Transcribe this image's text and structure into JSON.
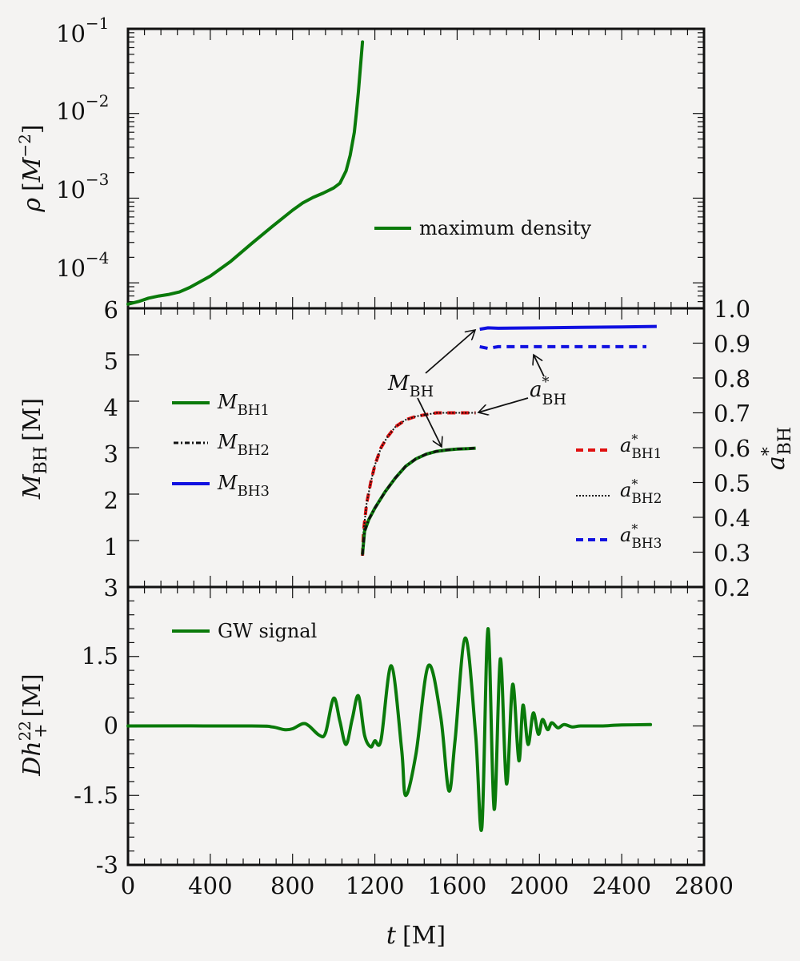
{
  "chart_data": {
    "type": "line",
    "x_axis": {
      "label": "t [M]",
      "label_var": "t",
      "label_unit": "[M]",
      "range": [
        0,
        2800
      ],
      "ticks": [
        0,
        400,
        800,
        1200,
        1600,
        2000,
        2400,
        2800
      ],
      "tick_labels": [
        "0",
        "400",
        "800",
        "1200",
        "1600",
        "2000",
        "2400",
        "2800"
      ]
    },
    "panels": [
      {
        "id": "density",
        "ylabel": "ρ [M^-2]",
        "ylabel_parts": {
          "var": "ρ",
          "unit_open": "[",
          "unit_var": "M",
          "unit_sup": "−2",
          "unit_close": "]"
        },
        "yscale": "log",
        "ylim": [
          5e-05,
          0.1
        ],
        "yticks": [
          0.0001,
          0.001,
          0.01,
          0.1
        ],
        "ytick_labels": [
          {
            "base": "10",
            "exp": "−4"
          },
          {
            "base": "10",
            "exp": "−3"
          },
          {
            "base": "10",
            "exp": "−2"
          },
          {
            "base": "10",
            "exp": "−1"
          }
        ],
        "legend": {
          "placement": "center-right",
          "entries": [
            {
              "label": "maximum density",
              "color": "#0a7a0a",
              "style": "solid"
            }
          ]
        },
        "series": [
          {
            "name": "maximum density",
            "color": "#0a7a0a",
            "style": "solid",
            "x": [
              0,
              50,
              100,
              150,
              200,
              250,
              300,
              400,
              500,
              600,
              700,
              800,
              850,
              900,
              950,
              1000,
              1030,
              1060,
              1080,
              1100,
              1110,
              1120,
              1130,
              1140
            ],
            "y": [
              5.6e-05,
              6e-05,
              6.6e-05,
              7e-05,
              7.3e-05,
              7.8e-05,
              8.8e-05,
              0.00012,
              0.00018,
              0.00029,
              0.00046,
              0.00072,
              0.00088,
              0.00102,
              0.00115,
              0.00132,
              0.0015,
              0.0021,
              0.0032,
              0.006,
              0.01,
              0.018,
              0.036,
              0.07
            ]
          }
        ]
      },
      {
        "id": "black-holes",
        "ylabel": "M_BH [M]",
        "ylabel_parts": {
          "var": "M",
          "sub": "BH",
          "unit": "[M]"
        },
        "ylim": [
          0,
          6
        ],
        "yticks": [
          1,
          2,
          3,
          4,
          5,
          6
        ],
        "ytick_labels": [
          "1",
          "2",
          "3",
          "4",
          "5",
          "6"
        ],
        "ylabel_right": "a*_BH",
        "ylabel_right_parts": {
          "var": "a",
          "sup": "*",
          "sub": "BH"
        },
        "ylim_right": [
          0.2,
          1.0
        ],
        "yticks_right": [
          0.2,
          0.3,
          0.4,
          0.5,
          0.6,
          0.7,
          0.8,
          0.9,
          1.0
        ],
        "ytick_labels_right": [
          "0.2",
          "0.3",
          "0.4",
          "0.5",
          "0.6",
          "0.7",
          "0.8",
          "0.9",
          "1.0"
        ],
        "legend_left": {
          "placement": "center-left",
          "entries": [
            {
              "var": "M",
              "sub": "BH1",
              "color": "#0a7a0a",
              "style": "solid"
            },
            {
              "var": "M",
              "sub": "BH2",
              "color": "#111111",
              "style": "dashdot"
            },
            {
              "var": "M",
              "sub": "BH3",
              "color": "#1010e0",
              "style": "solid"
            }
          ]
        },
        "legend_right": {
          "placement": "center-right",
          "entries": [
            {
              "var": "a",
              "sup": "*",
              "sub": "BH1",
              "color": "#e01010",
              "style": "dashed"
            },
            {
              "var": "a",
              "sup": "*",
              "sub": "BH2",
              "color": "#111111",
              "style": "dotted"
            },
            {
              "var": "a",
              "sup": "*",
              "sub": "BH3",
              "color": "#1010e0",
              "style": "dashed"
            }
          ]
        },
        "annotations": [
          {
            "text_var": "M",
            "text_sub": "BH",
            "points_to": [
              "M_BH3",
              "M_BH1"
            ]
          },
          {
            "text_var": "a",
            "text_sup": "*",
            "text_sub": "BH",
            "points_to": [
              "a*_BH3",
              "a*_BH1"
            ]
          }
        ],
        "series": [
          {
            "name": "M_BH1",
            "axis": "left",
            "color": "#0a7a0a",
            "style": "solid",
            "x": [
              1140,
              1150,
              1170,
              1200,
              1250,
              1300,
              1350,
              1400,
              1450,
              1500,
              1550,
              1600,
              1650,
              1690
            ],
            "y": [
              0.7,
              1.2,
              1.45,
              1.7,
              2.05,
              2.35,
              2.6,
              2.76,
              2.86,
              2.92,
              2.95,
              2.97,
              2.98,
              2.99
            ]
          },
          {
            "name": "M_BH2",
            "axis": "left",
            "color": "#111111",
            "style": "dashdot",
            "x": [
              1140,
              1150,
              1170,
              1200,
              1250,
              1300,
              1350,
              1400,
              1450,
              1500,
              1550,
              1600,
              1650,
              1690
            ],
            "y": [
              0.7,
              1.2,
              1.45,
              1.7,
              2.05,
              2.35,
              2.6,
              2.76,
              2.86,
              2.92,
              2.95,
              2.97,
              2.98,
              2.99
            ]
          },
          {
            "name": "M_BH3",
            "axis": "left",
            "color": "#1010e0",
            "style": "solid",
            "x": [
              1710,
              1750,
              1800,
              2000,
              2200,
              2400,
              2570
            ],
            "y": [
              5.55,
              5.58,
              5.57,
              5.58,
              5.59,
              5.6,
              5.61
            ]
          },
          {
            "name": "a*_BH1",
            "axis": "right",
            "color": "#e01010",
            "style": "dashed",
            "x": [
              1140,
              1145,
              1160,
              1180,
              1200,
              1230,
              1260,
              1300,
              1350,
              1400,
              1450,
              1500,
              1550,
              1600,
              1690
            ],
            "y": [
              0.29,
              0.36,
              0.44,
              0.5,
              0.55,
              0.6,
              0.63,
              0.66,
              0.68,
              0.69,
              0.695,
              0.7,
              0.7,
              0.7,
              0.7
            ]
          },
          {
            "name": "a*_BH2",
            "axis": "right",
            "color": "#111111",
            "style": "dotted",
            "x": [
              1140,
              1145,
              1160,
              1180,
              1200,
              1230,
              1260,
              1300,
              1350,
              1400,
              1450,
              1500,
              1550,
              1600,
              1690
            ],
            "y": [
              0.29,
              0.36,
              0.44,
              0.5,
              0.55,
              0.6,
              0.63,
              0.66,
              0.68,
              0.69,
              0.695,
              0.7,
              0.7,
              0.7,
              0.7
            ]
          },
          {
            "name": "a*_BH3",
            "axis": "right",
            "color": "#1010e0",
            "style": "dashed",
            "x": [
              1710,
              1750,
              1800,
              2000,
              2200,
              2400,
              2520
            ],
            "y": [
              0.89,
              0.885,
              0.89,
              0.89,
              0.89,
              0.89,
              0.89
            ]
          }
        ]
      },
      {
        "id": "gw",
        "ylabel": "Dh+^22 [M]",
        "ylabel_parts": {
          "var": "Dh",
          "sup": "22",
          "sub": "+",
          "unit": "[M]"
        },
        "ylim": [
          -3,
          3
        ],
        "yticks": [
          -3,
          -1.5,
          0,
          1.5,
          3
        ],
        "ytick_labels": [
          "-3",
          "-1.5",
          "0",
          "1.5",
          "3"
        ],
        "legend": {
          "placement": "top-left",
          "entries": [
            {
              "label": "GW signal",
              "color": "#0a7a0a",
              "style": "solid"
            }
          ]
        },
        "series": [
          {
            "name": "GW signal",
            "color": "#0a7a0a",
            "style": "solid",
            "x": [
              0,
              600,
              700,
              760,
              800,
              850,
              880,
              930,
              960,
              1000,
              1030,
              1060,
              1090,
              1120,
              1150,
              1180,
              1200,
              1230,
              1280,
              1330,
              1350,
              1400,
              1460,
              1520,
              1560,
              1590,
              1640,
              1690,
              1720,
              1750,
              1780,
              1810,
              1840,
              1870,
              1900,
              1920,
              1945,
              1970,
              1995,
              2015,
              2040,
              2060,
              2090,
              2120,
              2160,
              2200,
              2300,
              2400,
              2540
            ],
            "y": [
              0,
              0,
              -0.02,
              -0.08,
              -0.06,
              0.05,
              0.0,
              -0.2,
              -0.15,
              0.6,
              0.1,
              -0.4,
              0.15,
              0.65,
              -0.2,
              -0.45,
              -0.32,
              -0.3,
              1.3,
              -0.5,
              -1.5,
              -0.6,
              1.3,
              0.2,
              -1.4,
              -0.3,
              1.9,
              -0.2,
              -2.2,
              2.1,
              -1.8,
              1.45,
              -1.25,
              0.9,
              -0.75,
              0.45,
              -0.4,
              0.28,
              -0.18,
              0.14,
              -0.08,
              0.07,
              -0.04,
              0.03,
              -0.02,
              0.0,
              0.0,
              0.02,
              0.03
            ]
          }
        ]
      }
    ]
  }
}
